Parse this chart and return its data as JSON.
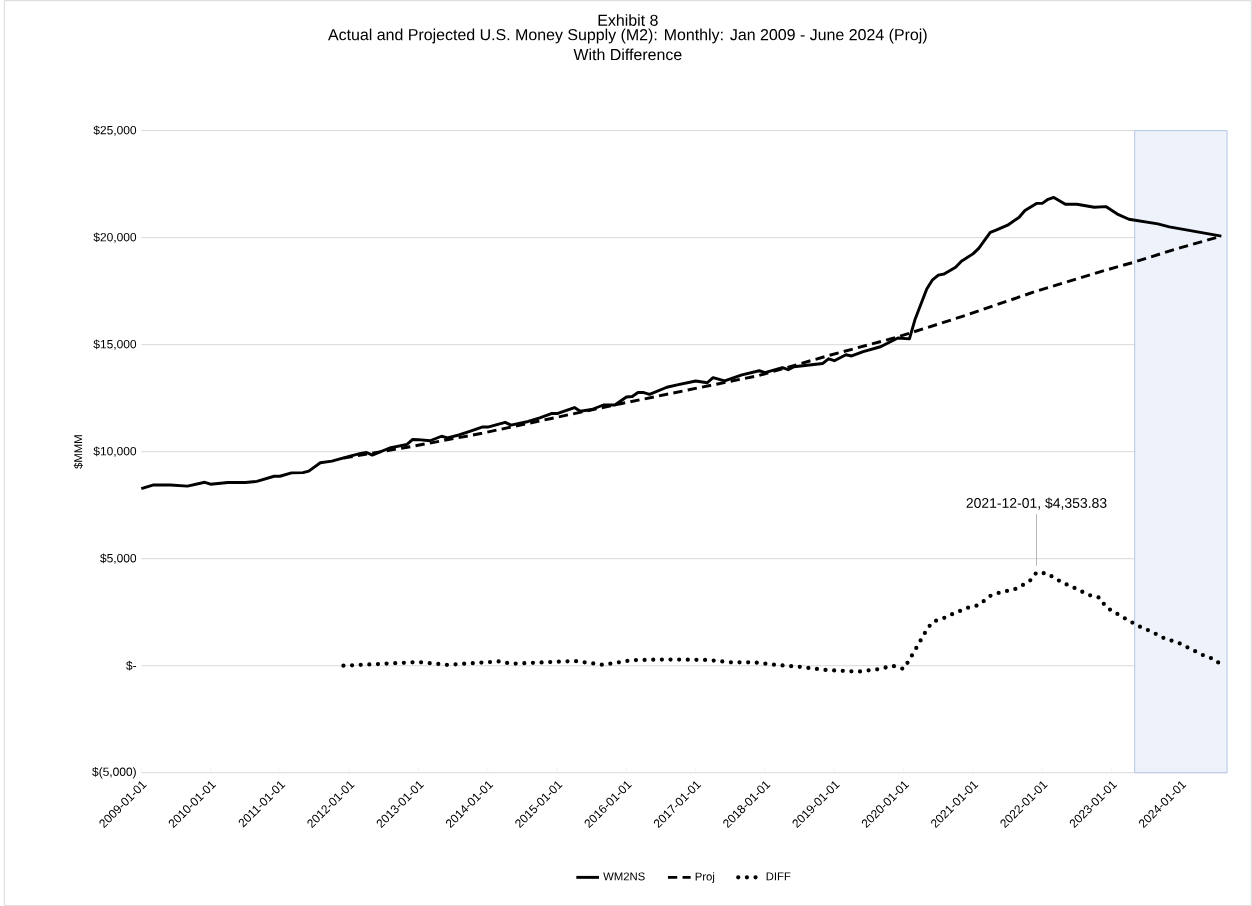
{
  "chart_data": {
    "type": "line",
    "title": "Exhibit 8",
    "subtitle": "Actual and Projected U.S. Money Supply (M2): Monthly: Jan 2009 - June 2024 (Proj) With Difference",
    "ylabel": "$MMM",
    "series": [
      {
        "name": "WM2NS",
        "color": "#000000",
        "line_style": "solid",
        "x": [
          "2009-01",
          "2009-03",
          "2009-06",
          "2009-09",
          "2009-12",
          "2010-01",
          "2010-04",
          "2010-07",
          "2010-09",
          "2010-12",
          "2011-01",
          "2011-03",
          "2011-05",
          "2011-06",
          "2011-08",
          "2011-10",
          "2012-01",
          "2012-03",
          "2012-04",
          "2012-05",
          "2012-08",
          "2012-11",
          "2012-12",
          "2013-01",
          "2013-03",
          "2013-05",
          "2013-06",
          "2013-08",
          "2013-10",
          "2013-12",
          "2014-01",
          "2014-04",
          "2014-05",
          "2014-08",
          "2014-10",
          "2014-12",
          "2015-01",
          "2015-04",
          "2015-05",
          "2015-07",
          "2015-09",
          "2015-11",
          "2016-01",
          "2016-02",
          "2016-03",
          "2016-04",
          "2016-05",
          "2016-08",
          "2016-10",
          "2017-01",
          "2017-03",
          "2017-04",
          "2017-06",
          "2017-09",
          "2017-12",
          "2018-01",
          "2018-04",
          "2018-05",
          "2018-06",
          "2018-11",
          "2018-12",
          "2019-01",
          "2019-03",
          "2019-04",
          "2019-06",
          "2019-09",
          "2019-12",
          "2020-02",
          "2020-03",
          "2020-05",
          "2020-06",
          "2020-07",
          "2020-08",
          "2020-10",
          "2020-11",
          "2021-01",
          "2021-02",
          "2021-04",
          "2021-05",
          "2021-07",
          "2021-09",
          "2021-10",
          "2021-12",
          "2022-01",
          "2022-02",
          "2022-03",
          "2022-05",
          "2022-07",
          "2022-10",
          "2022-12",
          "2023-02",
          "2023-04",
          "2023-09",
          "2023-11",
          "2024-08"
        ],
        "values": [
          8270,
          8440,
          8440,
          8390,
          8570,
          8480,
          8560,
          8560,
          8610,
          8850,
          8850,
          9010,
          9020,
          9090,
          9480,
          9560,
          9780,
          9920,
          9960,
          9840,
          10170,
          10340,
          10570,
          10560,
          10510,
          10720,
          10640,
          10780,
          10960,
          11150,
          11150,
          11370,
          11240,
          11410,
          11580,
          11780,
          11780,
          12060,
          11890,
          11970,
          12180,
          12180,
          12550,
          12580,
          12760,
          12760,
          12680,
          13010,
          13130,
          13300,
          13220,
          13460,
          13310,
          13590,
          13780,
          13690,
          13930,
          13830,
          13970,
          14120,
          14340,
          14250,
          14530,
          14470,
          14670,
          14900,
          15310,
          15270,
          16200,
          17600,
          18030,
          18250,
          18300,
          18620,
          18900,
          19240,
          19500,
          20250,
          20350,
          20580,
          20950,
          21270,
          21600,
          21600,
          21790,
          21880,
          21560,
          21560,
          21420,
          21450,
          21100,
          20860,
          20640,
          20500,
          20070
        ]
      },
      {
        "name": "Proj",
        "color": "#000000",
        "line_style": "dashed",
        "x": [
          "2011-12",
          "2012-12",
          "2013-12",
          "2014-12",
          "2015-12",
          "2016-12",
          "2017-12",
          "2018-12",
          "2019-12",
          "2020-12",
          "2021-12",
          "2022-12",
          "2023-05",
          "2023-12",
          "2024-08"
        ],
        "values": [
          9700,
          10250,
          10860,
          11550,
          12240,
          12900,
          13560,
          14490,
          15360,
          16390,
          17500,
          18480,
          18860,
          19460,
          20070
        ]
      },
      {
        "name": "DIFF",
        "color": "#000000",
        "line_style": "dotted",
        "x": [
          "2011-12",
          "2013-01",
          "2013-06",
          "2014-03",
          "2014-05",
          "2015-04",
          "2015-09",
          "2016-02",
          "2016-08",
          "2017-03",
          "2017-07",
          "2017-11",
          "2018-03",
          "2018-07",
          "2018-11",
          "2019-05",
          "2019-09",
          "2019-11",
          "2020-01",
          "2020-02",
          "2020-03",
          "2020-05",
          "2020-06",
          "2020-08",
          "2020-09",
          "2020-12",
          "2021-02",
          "2021-04",
          "2021-06",
          "2021-08",
          "2021-10",
          "2021-11",
          "2021-12",
          "2022-02",
          "2022-03",
          "2022-05",
          "2022-07",
          "2022-09",
          "2022-11",
          "2022-12",
          "2023-02",
          "2023-04",
          "2023-06",
          "2023-08",
          "2023-10",
          "2024-01",
          "2024-03",
          "2024-05",
          "2024-07",
          "2024-08"
        ],
        "values": [
          0,
          170,
          40,
          200,
          90,
          220,
          40,
          260,
          290,
          270,
          160,
          160,
          30,
          -50,
          -190,
          -280,
          -150,
          0,
          -150,
          280,
          740,
          1680,
          2050,
          2230,
          2360,
          2700,
          2830,
          3260,
          3450,
          3540,
          3820,
          4000,
          4353.83,
          4300,
          4100,
          3820,
          3580,
          3310,
          3170,
          2740,
          2420,
          2100,
          1810,
          1580,
          1300,
          1020,
          740,
          470,
          280,
          0
        ]
      }
    ],
    "annotations": [
      {
        "text": "2021-12-01, $4,353.83",
        "x": "2021-12",
        "y": 4353.83
      }
    ],
    "bands": [
      {
        "axis": "x",
        "from": "2023-05",
        "to": "2024-09",
        "color": "#eef2fb"
      }
    ],
    "xlim": [
      "2009-01",
      "2024-09"
    ],
    "xticks": [
      "2009-01-01",
      "2010-01-01",
      "2011-01-01",
      "2012-01-01",
      "2013-01-01",
      "2014-01-01",
      "2015-01-01",
      "2016-01-01",
      "2017-01-01",
      "2018-01-01",
      "2019-01-01",
      "2020-01-01",
      "2021-01-01",
      "2022-01-01",
      "2023-01-01",
      "2024-01-01"
    ],
    "ylim": [
      -5000,
      25000
    ],
    "yticks": [
      {
        "value": 25000,
        "label": "$25,000"
      },
      {
        "value": 20000,
        "label": "$20,000"
      },
      {
        "value": 15000,
        "label": "$15,000"
      },
      {
        "value": 10000,
        "label": "$10,000"
      },
      {
        "value": 5000,
        "label": "$5,000"
      },
      {
        "value": 0,
        "label": "$-"
      },
      {
        "value": -5000,
        "label": "$(5,000)"
      }
    ],
    "grid": "y",
    "legend": "bottom",
    "marker": "none"
  }
}
